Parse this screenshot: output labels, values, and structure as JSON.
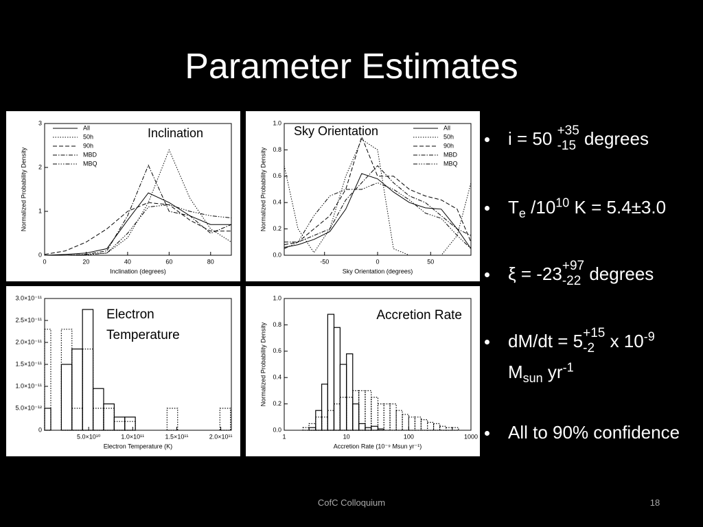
{
  "slide": {
    "title": "Parameter Estimates",
    "bullets": [
      [
        [
          {
            "text": "i = 50 "
          },
          {
            "sup": "+35",
            "sub": "-15"
          },
          {
            "text": " degrees"
          }
        ]
      ],
      [
        [
          {
            "text": "T"
          },
          {
            "sub": "e"
          },
          {
            "text": " /10"
          },
          {
            "sup": "10"
          },
          {
            "text": " K = 5.4±3.0"
          }
        ]
      ],
      [
        [
          {
            "text": "ξ = -23"
          },
          {
            "sup": "+97",
            "sub": "-22"
          },
          {
            "text": " degrees"
          }
        ]
      ],
      [
        [
          {
            "text": "dM/dt = 5"
          },
          {
            "sup": "+15",
            "sub": "-2"
          },
          {
            "text": "  x 10"
          },
          {
            "sup": "-9"
          }
        ],
        [
          {
            "text": "M"
          },
          {
            "sub": "sun"
          },
          {
            "text": " yr"
          },
          {
            "sup": "-1"
          }
        ]
      ],
      [
        [
          {
            "text": "All to 90% confidence"
          }
        ]
      ]
    ],
    "footer": "CofC Colloquium",
    "page_number": "18"
  },
  "chart_data": [
    {
      "type": "line",
      "title": "Inclination",
      "xlabel": "Inclination (degrees)",
      "ylabel": "Normalized Probability Density",
      "x": [
        0,
        10,
        20,
        30,
        40,
        50,
        60,
        70,
        80,
        90
      ],
      "series": [
        {
          "name": "All",
          "color": "#000000",
          "dash": "solid",
          "values": [
            0,
            0.02,
            0.05,
            0.15,
            0.8,
            1.42,
            1.2,
            0.9,
            0.7,
            0.7
          ]
        },
        {
          "name": "50h",
          "color": "#000000",
          "dash": "dotted",
          "values": [
            0,
            0,
            0.01,
            0.05,
            0.4,
            1.2,
            2.4,
            1.3,
            0.6,
            0.3
          ]
        },
        {
          "name": "90h",
          "color": "#000000",
          "dash": "dashed",
          "values": [
            0.02,
            0.1,
            0.3,
            0.6,
            1.0,
            1.2,
            1.15,
            0.8,
            0.55,
            0.55
          ]
        },
        {
          "name": "MBD",
          "color": "#000000",
          "dash": "dashdot",
          "values": [
            0,
            0,
            0.02,
            0.1,
            0.9,
            2.05,
            1.0,
            0.9,
            0.5,
            0.7
          ]
        },
        {
          "name": "MBQ",
          "color": "#000000",
          "dash": "dashdotdotdot",
          "values": [
            0,
            0,
            0.01,
            0.05,
            0.5,
            1.1,
            1.15,
            1.0,
            0.9,
            0.85
          ]
        }
      ],
      "xlim": [
        0,
        90
      ],
      "ylim": [
        0,
        3
      ],
      "xticks": [
        0,
        20,
        40,
        60,
        80
      ],
      "yticks": [
        0,
        1,
        2,
        3
      ],
      "legend": "upper left"
    },
    {
      "type": "line",
      "title": "Sky Orientation",
      "xlabel": "Sky Orientation (degrees)",
      "ylabel": "Normalized Probability Density",
      "x": [
        -88,
        -75,
        -60,
        -45,
        -30,
        -15,
        0,
        15,
        30,
        45,
        60,
        75,
        88
      ],
      "series": [
        {
          "name": "All",
          "color": "#000000",
          "dash": "solid",
          "values": [
            0.06,
            0.08,
            0.12,
            0.18,
            0.35,
            0.62,
            0.58,
            0.48,
            0.4,
            0.36,
            0.35,
            0.2,
            0.05
          ]
        },
        {
          "name": "50h",
          "color": "#000000",
          "dash": "dotted",
          "values": [
            0.68,
            0.2,
            0.02,
            0.2,
            0.6,
            0.88,
            0.8,
            0.05,
            0,
            0,
            0,
            0.15,
            0.55
          ]
        },
        {
          "name": "90h",
          "color": "#000000",
          "dash": "dashed",
          "values": [
            0.08,
            0.1,
            0.2,
            0.3,
            0.5,
            0.9,
            0.6,
            0.6,
            0.5,
            0.45,
            0.42,
            0.35,
            0.1
          ]
        },
        {
          "name": "MBD",
          "color": "#000000",
          "dash": "dashdot",
          "values": [
            0.1,
            0.1,
            0.15,
            0.2,
            0.42,
            0.55,
            0.68,
            0.55,
            0.45,
            0.4,
            0.3,
            0.2,
            0.15
          ]
        },
        {
          "name": "MBQ",
          "color": "#000000",
          "dash": "dashdotdotdot",
          "values": [
            0.05,
            0.1,
            0.3,
            0.45,
            0.5,
            0.5,
            0.55,
            0.5,
            0.42,
            0.32,
            0.28,
            0.15,
            0.05
          ]
        }
      ],
      "xlim": [
        -88,
        88
      ],
      "ylim": [
        0,
        1
      ],
      "xticks": [
        -50,
        0,
        50
      ],
      "yticks": [
        {
          "value": 0,
          "label": "0.0"
        },
        0.2,
        0.4,
        0.6,
        0.8,
        {
          "value": 1,
          "label": "1.0"
        }
      ],
      "legend": "upper right"
    },
    {
      "type": "histogram",
      "title": "Electron Temperature",
      "xlabel": "Electron Temperature (K)",
      "bins": [
        0,
        7000000000.0,
        19000000000.0,
        31000000000.0,
        43000000000.0,
        55000000000.0,
        67000000000.0,
        79000000000.0,
        91000000000.0,
        103000000000.0,
        115000000000.0,
        127000000000.0,
        139000000000.0,
        151000000000.0,
        163000000000.0,
        175000000000.0,
        187000000000.0,
        199000000000.0,
        211000000000.0
      ],
      "series": [
        {
          "color": "#000000",
          "dash": "solid",
          "values": [
            5e-12,
            0,
            1.5e-11,
            1.85e-11,
            2.75e-11,
            9.5e-12,
            6e-12,
            3e-12,
            3e-12,
            0,
            0,
            0,
            0,
            0,
            0,
            0,
            0,
            0
          ]
        },
        {
          "color": "#000000",
          "dash": "dotted",
          "values": [
            2.3e-11,
            0,
            2.3e-11,
            5e-12,
            1.85e-11,
            5e-12,
            5e-12,
            2e-12,
            2e-12,
            0,
            0,
            0,
            5e-12,
            0,
            0,
            0,
            0,
            5e-12
          ]
        }
      ],
      "xlim": [
        0,
        212000000000.0
      ],
      "ylim": [
        0,
        3e-11
      ],
      "xticks": [
        {
          "value": 50000000000.0,
          "label": "5.0×10¹⁰"
        },
        {
          "value": 100000000000.0,
          "label": "1.0×10¹¹"
        },
        {
          "value": 150000000000.0,
          "label": "1.5×10¹¹"
        },
        {
          "value": 200000000000.0,
          "label": "2.0×10¹¹"
        }
      ],
      "yticks": [
        0,
        {
          "value": 5e-12,
          "label": "5.0×10⁻¹²"
        },
        {
          "value": 1e-11,
          "label": "1.0×10⁻¹¹"
        },
        {
          "value": 1.5e-11,
          "label": "1.5×10⁻¹¹"
        },
        {
          "value": 2e-11,
          "label": "2.0×10⁻¹¹"
        },
        {
          "value": 2.5e-11,
          "label": "2.5×10⁻¹¹"
        },
        {
          "value": 3e-11,
          "label": "3.0×10⁻¹¹"
        }
      ]
    },
    {
      "type": "histogram",
      "title": "Accretion Rate",
      "xlabel": "Accretion Rate (10⁻⁹ Msun yr⁻¹)",
      "ylabel": "Normalized Probability Density",
      "xscale": "log",
      "bins": [
        2,
        2.5,
        3.2,
        4,
        5,
        6.3,
        7.9,
        10,
        12.6,
        15.8,
        20,
        25,
        32,
        40,
        50,
        63,
        79,
        100,
        126,
        158,
        200,
        251,
        316,
        398,
        501,
        631
      ],
      "series": [
        {
          "color": "#000000",
          "dash": "solid",
          "values": [
            0,
            0.02,
            0.15,
            0.35,
            0.88,
            0.78,
            0.5,
            0.58,
            0.2,
            0.05,
            0.02,
            0.03,
            0.01,
            0,
            0,
            0,
            0,
            0,
            0,
            0,
            0,
            0,
            0,
            0,
            0
          ]
        },
        {
          "color": "#000000",
          "dash": "dotted",
          "values": [
            0.02,
            0.05,
            0.1,
            0.1,
            0.15,
            0.2,
            0.25,
            0.25,
            0.3,
            0.3,
            0.3,
            0.25,
            0.2,
            0.2,
            0.2,
            0.15,
            0.12,
            0.1,
            0.1,
            0.08,
            0.06,
            0.05,
            0.03,
            0.02,
            0.02
          ]
        }
      ],
      "xlim": [
        1,
        1000
      ],
      "ylim": [
        0,
        1
      ],
      "xticks": [
        1,
        10,
        100,
        1000
      ],
      "yticks": [
        {
          "value": 0,
          "label": "0.0"
        },
        0.2,
        0.4,
        0.6,
        0.8,
        {
          "value": 1,
          "label": "1.0"
        }
      ]
    }
  ]
}
